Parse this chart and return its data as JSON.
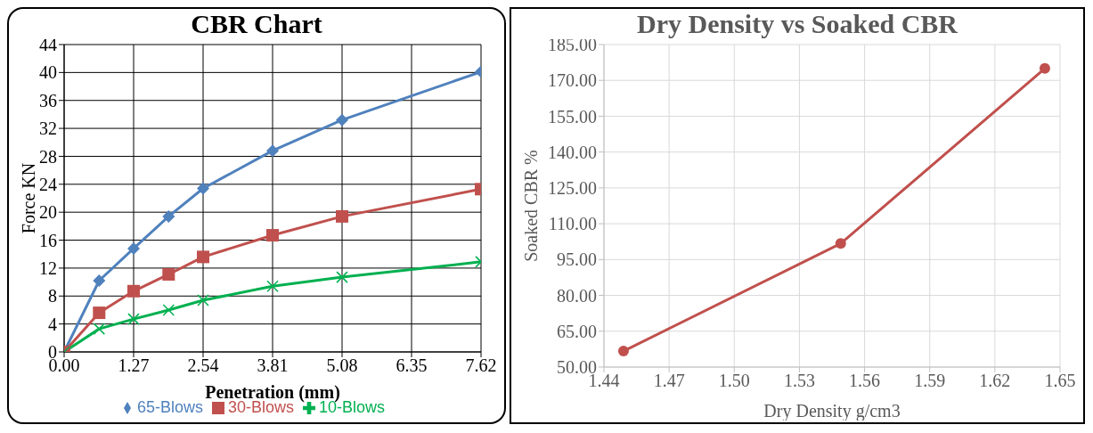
{
  "chart_data": [
    {
      "type": "line",
      "title": "CBR Chart",
      "xlabel": "Penetration (mm)",
      "ylabel": "Force KN",
      "x": [
        0,
        0.64,
        1.27,
        1.91,
        2.54,
        3.81,
        5.08,
        7.62
      ],
      "series": [
        {
          "name": "65-Blows",
          "color": "#4f81bd",
          "marker": "diamond",
          "values": [
            0,
            10.2,
            14.8,
            19.4,
            23.4,
            28.8,
            33.2,
            40.1
          ]
        },
        {
          "name": "30-Blows",
          "color": "#c0504d",
          "marker": "square",
          "values": [
            0,
            5.6,
            8.7,
            11.1,
            13.6,
            16.7,
            19.4,
            23.3
          ]
        },
        {
          "name": "10-Blows",
          "color": "#00b050",
          "marker": "cross",
          "values": [
            0,
            3.3,
            4.7,
            6.0,
            7.4,
            9.4,
            10.7,
            12.9
          ]
        }
      ],
      "xlim": [
        0,
        7.62
      ],
      "xticks": [
        {
          "value": 0,
          "label": "0.00"
        },
        1.27,
        2.54,
        3.81,
        5.08,
        6.35,
        7.62
      ],
      "ylim": [
        0,
        44
      ],
      "yticks": [
        0,
        4,
        8,
        12,
        16,
        20,
        24,
        28,
        32,
        36,
        40,
        44
      ],
      "grid": true,
      "legend": "bottom",
      "line_style": "solid"
    },
    {
      "type": "line",
      "title": "Dry Density vs Soaked CBR",
      "xlabel": "Dry Density g/cm3",
      "ylabel": "Soaked CBR %",
      "x": [
        1.449,
        1.549,
        1.643
      ],
      "series": [
        {
          "color": "#c0504d",
          "marker": "circle",
          "values": [
            56.7,
            101.7,
            175
          ]
        }
      ],
      "xlim": [
        1.44,
        1.65
      ],
      "xticks": [
        1.44,
        1.47,
        {
          "value": 1.5,
          "label": "1.50"
        },
        1.53,
        1.56,
        1.59,
        1.62,
        1.65
      ],
      "ylim": [
        50,
        185
      ],
      "yticks": [
        {
          "value": 50,
          "label": "50.00"
        },
        {
          "value": 65,
          "label": "65.00"
        },
        {
          "value": 80,
          "label": "80.00"
        },
        {
          "value": 95,
          "label": "95.00"
        },
        {
          "value": 110,
          "label": "110.00"
        },
        {
          "value": 125,
          "label": "125.00"
        },
        {
          "value": 140,
          "label": "140.00"
        },
        {
          "value": 155,
          "label": "155.00"
        },
        {
          "value": 170,
          "label": "170.00"
        },
        {
          "value": 185,
          "label": "185.00"
        }
      ],
      "grid": true,
      "line_style": "solid"
    }
  ]
}
